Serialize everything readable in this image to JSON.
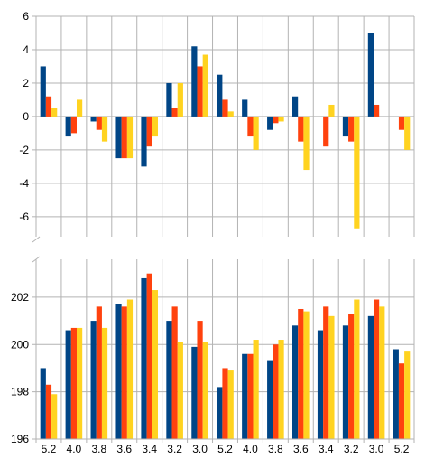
{
  "chart_data": [
    {
      "type": "bar",
      "panel": "top",
      "categories": [
        "5.2",
        "4.0",
        "3.8",
        "3.6",
        "3.4",
        "3.2",
        "3.0",
        "5.2",
        "4.0",
        "3.8",
        "3.6",
        "3.4",
        "3.2",
        "3.0",
        "5.2"
      ],
      "series": [
        {
          "values": [
            3.0,
            -1.2,
            -0.3,
            -2.5,
            -3.0,
            2.0,
            4.2,
            2.5,
            1.0,
            -0.8,
            1.2,
            0.0,
            -1.2,
            5.0,
            0.0
          ]
        },
        {
          "values": [
            1.2,
            -1.0,
            -0.8,
            -2.5,
            -1.8,
            0.5,
            3.0,
            1.0,
            -1.2,
            -0.4,
            -1.5,
            -1.8,
            -1.5,
            0.7,
            -0.8
          ]
        },
        {
          "values": [
            0.5,
            1.0,
            -1.5,
            -2.5,
            -1.2,
            2.0,
            3.7,
            0.3,
            -2.0,
            -0.3,
            -3.2,
            0.7,
            -6.7,
            0.0,
            -2.0
          ]
        }
      ],
      "ylim": [
        -7.2,
        6
      ],
      "yticks": [
        "6",
        "4",
        "2",
        "0",
        "-2",
        "-4",
        "-6"
      ],
      "grid": true
    },
    {
      "type": "bar",
      "panel": "bottom",
      "categories": [
        "5.2",
        "4.0",
        "3.8",
        "3.6",
        "3.4",
        "3.2",
        "3.0",
        "5.2",
        "4.0",
        "3.8",
        "3.6",
        "3.4",
        "3.2",
        "3.0",
        "5.2"
      ],
      "series": [
        {
          "values": [
            199.0,
            200.6,
            201.0,
            201.7,
            202.8,
            201.0,
            199.9,
            198.2,
            199.6,
            199.3,
            200.8,
            200.6,
            200.8,
            201.2,
            199.8
          ]
        },
        {
          "values": [
            198.3,
            200.7,
            201.6,
            201.6,
            203.0,
            201.6,
            201.0,
            199.0,
            199.6,
            200.0,
            201.5,
            201.6,
            201.3,
            201.9,
            199.2
          ]
        },
        {
          "values": [
            197.9,
            200.7,
            200.7,
            201.9,
            202.3,
            200.1,
            200.1,
            198.9,
            200.2,
            200.2,
            201.4,
            201.2,
            201.9,
            201.6,
            199.7
          ]
        }
      ],
      "ylim": [
        196,
        203.6
      ],
      "yticks": [
        "202",
        "200",
        "198",
        "196"
      ],
      "grid": true
    }
  ],
  "colors": [
    "#004586",
    "#ff420e",
    "#ffd320"
  ]
}
